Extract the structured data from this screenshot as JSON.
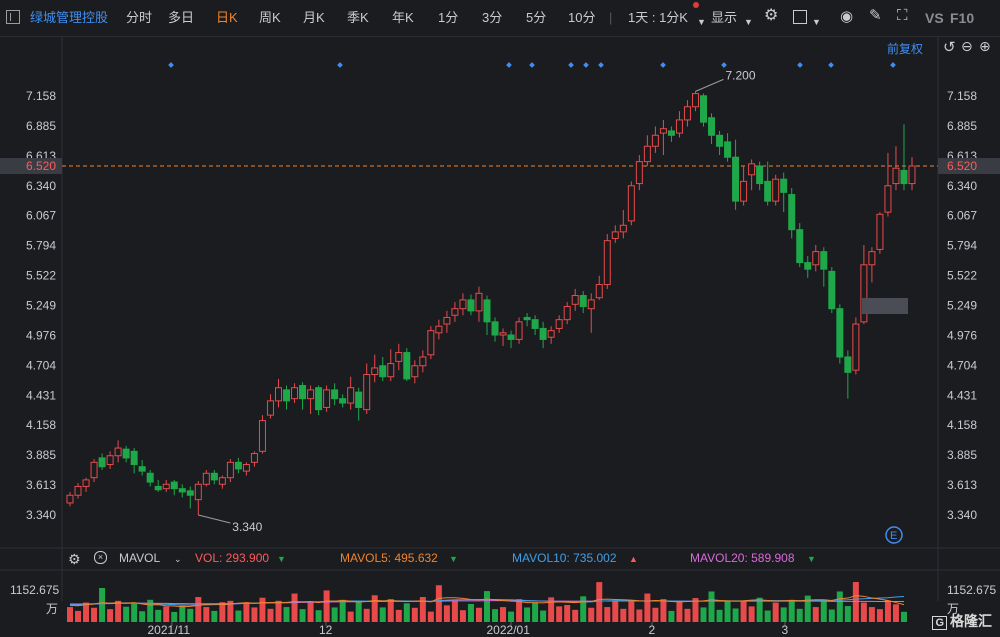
{
  "toolbar": {
    "stock_name": "绿城管理控股",
    "tabs": [
      "分时",
      "多日",
      "日K",
      "周K",
      "月K",
      "季K",
      "年K",
      "1分",
      "3分",
      "5分",
      "10分"
    ],
    "active_tab": "日K",
    "period_select": "1天 : 1分K",
    "display_label": "显示",
    "vs_label": "VS",
    "f10_label": "F10"
  },
  "chart": {
    "adjust_label": "前复权",
    "y_ticks": [
      "7.158",
      "6.885",
      "6.613",
      "6.340",
      "6.067",
      "5.794",
      "5.522",
      "5.249",
      "4.976",
      "4.704",
      "4.431",
      "4.158",
      "3.885",
      "3.613",
      "3.340"
    ],
    "current_price": "6.520",
    "high_label": "7.200",
    "low_label": "3.340",
    "x_labels": [
      "2021/11",
      "12",
      "2022/01",
      "2",
      "3"
    ],
    "event_marker_label": "E"
  },
  "indicator": {
    "name": "MAVOL",
    "vol": "VOL: 293.900",
    "mavol5": "MAVOL5: 495.632",
    "mavol10": "MAVOL10: 735.002",
    "mavol20": "MAVOL20: 589.908",
    "vol_max": "1152.675",
    "vol_unit": "万",
    "vol_color": "#ff5a5a",
    "mavol5_color": "#f0842c",
    "mavol10_color": "#3fa0e8",
    "mavol20_color": "#d86bd8"
  },
  "colors": {
    "up": "#e84a4a",
    "down": "#1fa84a",
    "accent": "#f0842c"
  },
  "chart_data": {
    "type": "candlestick",
    "title": "",
    "ylim": [
      3.3,
      7.3
    ],
    "candles": [
      [
        3.45,
        3.52,
        3.42,
        3.55
      ],
      [
        3.52,
        3.6,
        3.49,
        3.63
      ],
      [
        3.6,
        3.66,
        3.55,
        3.68
      ],
      [
        3.68,
        3.82,
        3.64,
        3.85
      ],
      [
        3.86,
        3.78,
        3.75,
        3.9
      ],
      [
        3.8,
        3.88,
        3.76,
        3.92
      ],
      [
        3.88,
        3.95,
        3.82,
        4.02
      ],
      [
        3.94,
        3.86,
        3.82,
        3.97
      ],
      [
        3.92,
        3.8,
        3.72,
        3.95
      ],
      [
        3.78,
        3.74,
        3.7,
        3.84
      ],
      [
        3.72,
        3.64,
        3.6,
        3.75
      ],
      [
        3.6,
        3.57,
        3.55,
        3.66
      ],
      [
        3.58,
        3.62,
        3.55,
        3.66
      ],
      [
        3.64,
        3.58,
        3.52,
        3.66
      ],
      [
        3.58,
        3.55,
        3.5,
        3.62
      ],
      [
        3.56,
        3.52,
        3.4,
        3.6
      ],
      [
        3.48,
        3.62,
        3.34,
        3.65
      ],
      [
        3.62,
        3.72,
        3.6,
        3.75
      ],
      [
        3.72,
        3.66,
        3.62,
        3.75
      ],
      [
        3.62,
        3.68,
        3.58,
        3.7
      ],
      [
        3.68,
        3.82,
        3.64,
        3.85
      ],
      [
        3.82,
        3.76,
        3.72,
        3.86
      ],
      [
        3.74,
        3.8,
        3.7,
        3.82
      ],
      [
        3.82,
        3.9,
        3.78,
        3.92
      ],
      [
        3.92,
        4.2,
        3.9,
        4.25
      ],
      [
        4.25,
        4.38,
        4.22,
        4.44
      ],
      [
        4.38,
        4.5,
        4.32,
        4.58
      ],
      [
        4.48,
        4.38,
        4.3,
        4.52
      ],
      [
        4.4,
        4.5,
        4.36,
        4.54
      ],
      [
        4.52,
        4.4,
        4.3,
        4.55
      ],
      [
        4.4,
        4.48,
        4.26,
        4.52
      ],
      [
        4.5,
        4.3,
        4.25,
        4.52
      ],
      [
        4.32,
        4.48,
        4.28,
        4.52
      ],
      [
        4.48,
        4.4,
        4.34,
        4.54
      ],
      [
        4.4,
        4.36,
        4.32,
        4.44
      ],
      [
        4.36,
        4.5,
        4.3,
        4.6
      ],
      [
        4.46,
        4.32,
        4.2,
        4.5
      ],
      [
        4.3,
        4.62,
        4.26,
        4.72
      ],
      [
        4.62,
        4.68,
        4.55,
        4.8
      ],
      [
        4.7,
        4.6,
        4.56,
        4.78
      ],
      [
        4.6,
        4.72,
        4.56,
        4.85
      ],
      [
        4.74,
        4.82,
        4.66,
        4.9
      ],
      [
        4.82,
        4.58,
        4.56,
        4.86
      ],
      [
        4.6,
        4.7,
        4.54,
        4.75
      ],
      [
        4.7,
        4.78,
        4.64,
        4.84
      ],
      [
        4.8,
        5.02,
        4.76,
        5.06
      ],
      [
        5.0,
        5.06,
        4.94,
        5.12
      ],
      [
        5.08,
        5.14,
        5.0,
        5.2
      ],
      [
        5.16,
        5.22,
        5.1,
        5.28
      ],
      [
        5.22,
        5.3,
        5.16,
        5.36
      ],
      [
        5.3,
        5.2,
        5.16,
        5.35
      ],
      [
        5.2,
        5.36,
        5.1,
        5.42
      ],
      [
        5.3,
        5.1,
        4.98,
        5.34
      ],
      [
        5.1,
        4.98,
        4.92,
        5.14
      ],
      [
        4.98,
        5.0,
        4.88,
        5.04
      ],
      [
        4.98,
        4.94,
        4.86,
        5.02
      ],
      [
        4.94,
        5.1,
        4.9,
        5.14
      ],
      [
        5.14,
        5.12,
        5.06,
        5.18
      ],
      [
        5.12,
        5.04,
        4.98,
        5.16
      ],
      [
        5.04,
        4.94,
        4.86,
        5.1
      ],
      [
        4.96,
        5.02,
        4.9,
        5.06
      ],
      [
        5.04,
        5.12,
        5.0,
        5.16
      ],
      [
        5.12,
        5.24,
        5.08,
        5.28
      ],
      [
        5.26,
        5.34,
        5.2,
        5.4
      ],
      [
        5.34,
        5.24,
        5.18,
        5.38
      ],
      [
        5.22,
        5.3,
        5.0,
        5.36
      ],
      [
        5.32,
        5.44,
        5.3,
        5.52
      ],
      [
        5.44,
        5.84,
        5.4,
        5.9
      ],
      [
        5.86,
        5.92,
        5.82,
        5.98
      ],
      [
        5.92,
        5.98,
        5.86,
        6.12
      ],
      [
        6.02,
        6.34,
        5.98,
        6.38
      ],
      [
        6.36,
        6.56,
        6.3,
        6.62
      ],
      [
        6.56,
        6.7,
        6.52,
        6.8
      ],
      [
        6.7,
        6.8,
        6.64,
        6.88
      ],
      [
        6.82,
        6.86,
        6.62,
        6.94
      ],
      [
        6.84,
        6.8,
        6.74,
        6.88
      ],
      [
        6.82,
        6.94,
        6.78,
        7.02
      ],
      [
        6.94,
        7.06,
        6.88,
        7.12
      ],
      [
        7.06,
        7.18,
        7.02,
        7.2
      ],
      [
        7.16,
        6.92,
        6.88,
        7.18
      ],
      [
        6.96,
        6.8,
        6.72,
        7.0
      ],
      [
        6.8,
        6.7,
        6.62,
        6.84
      ],
      [
        6.74,
        6.6,
        6.56,
        6.82
      ],
      [
        6.6,
        6.2,
        6.12,
        6.76
      ],
      [
        6.2,
        6.38,
        6.16,
        6.52
      ],
      [
        6.44,
        6.54,
        6.3,
        6.58
      ],
      [
        6.52,
        6.36,
        6.3,
        6.56
      ],
      [
        6.38,
        6.2,
        6.16,
        6.56
      ],
      [
        6.2,
        6.4,
        6.16,
        6.44
      ],
      [
        6.4,
        6.28,
        6.1,
        6.46
      ],
      [
        6.26,
        5.94,
        5.86,
        6.32
      ],
      [
        5.94,
        5.64,
        5.6,
        6.0
      ],
      [
        5.64,
        5.58,
        5.5,
        5.7
      ],
      [
        5.62,
        5.74,
        5.56,
        5.8
      ],
      [
        5.74,
        5.58,
        5.42,
        5.78
      ],
      [
        5.56,
        5.22,
        5.18,
        5.6
      ],
      [
        5.22,
        4.78,
        4.72,
        5.26
      ],
      [
        4.78,
        4.64,
        4.4,
        4.84
      ],
      [
        4.66,
        5.08,
        4.62,
        5.14
      ],
      [
        5.1,
        5.62,
        5.08,
        5.8
      ],
      [
        5.62,
        5.74,
        5.46,
        5.78
      ],
      [
        5.76,
        6.08,
        5.72,
        6.1
      ],
      [
        6.1,
        6.34,
        6.06,
        6.64
      ],
      [
        6.36,
        6.5,
        6.3,
        6.7
      ],
      [
        6.48,
        6.36,
        6.3,
        6.9
      ],
      [
        6.36,
        6.52,
        6.3,
        6.6
      ]
    ],
    "volume": [
      430,
      320,
      560,
      410,
      980,
      370,
      610,
      440,
      520,
      310,
      640,
      350,
      450,
      290,
      470,
      380,
      720,
      430,
      320,
      570,
      610,
      330,
      560,
      420,
      700,
      380,
      610,
      430,
      820,
      370,
      560,
      340,
      910,
      420,
      640,
      300,
      590,
      380,
      770,
      420,
      660,
      350,
      540,
      410,
      720,
      300,
      1060,
      480,
      630,
      340,
      520,
      410,
      890,
      370,
      430,
      300,
      660,
      420,
      560,
      330,
      710,
      450,
      490,
      350,
      740,
      410,
      1150,
      430,
      600,
      380,
      590,
      360,
      820,
      410,
      660,
      320,
      580,
      380,
      690,
      420,
      880,
      350,
      600,
      390,
      610,
      450,
      700,
      330,
      560,
      420,
      640,
      380,
      760,
      430,
      590,
      360,
      880,
      460,
      1152,
      560,
      430,
      370,
      620,
      510,
      293
    ],
    "mavol5": [
      480,
      470,
      500,
      520,
      560,
      540,
      560,
      540,
      560,
      520,
      490,
      500,
      470,
      460,
      440,
      450,
      480,
      510,
      520,
      500,
      520,
      540,
      560,
      540,
      560,
      560,
      570,
      560,
      590,
      580,
      590,
      560,
      610,
      600,
      620,
      600,
      580,
      590,
      620,
      610,
      620,
      600,
      590,
      600,
      610,
      580,
      680,
      700,
      700,
      680,
      650,
      640,
      660,
      640,
      620,
      600,
      590,
      560,
      560,
      550,
      570,
      580,
      570,
      560,
      580,
      590,
      650,
      660,
      650,
      640,
      630,
      610,
      600,
      620,
      610,
      590,
      580,
      590,
      600,
      610,
      640,
      620,
      610,
      600,
      610,
      630,
      640,
      620,
      600,
      610,
      620,
      610,
      630,
      640,
      640,
      620,
      670,
      690,
      760,
      740,
      690,
      660,
      620,
      560,
      500
    ],
    "mavol10": [
      500,
      495,
      505,
      515,
      530,
      540,
      545,
      550,
      545,
      540,
      530,
      520,
      510,
      500,
      490,
      485,
      490,
      495,
      500,
      505,
      515,
      525,
      535,
      540,
      550,
      555,
      560,
      565,
      575,
      580,
      585,
      585,
      595,
      600,
      605,
      605,
      605,
      600,
      600,
      605,
      610,
      610,
      605,
      600,
      600,
      595,
      615,
      630,
      640,
      640,
      645,
      645,
      650,
      650,
      645,
      640,
      630,
      620,
      610,
      600,
      595,
      590,
      585,
      580,
      580,
      580,
      600,
      610,
      615,
      615,
      615,
      610,
      610,
      610,
      610,
      605,
      600,
      600,
      600,
      600,
      610,
      610,
      610,
      610,
      610,
      615,
      615,
      615,
      615,
      615,
      615,
      615,
      615,
      620,
      620,
      620,
      630,
      640,
      660,
      670,
      680,
      690,
      700,
      720,
      735
    ],
    "mavol20": [
      520,
      520,
      520,
      525,
      530,
      530,
      535,
      540,
      540,
      540,
      540,
      535,
      535,
      530,
      530,
      525,
      525,
      525,
      525,
      530,
      530,
      535,
      540,
      540,
      545,
      550,
      550,
      555,
      560,
      565,
      570,
      570,
      575,
      580,
      585,
      585,
      585,
      590,
      590,
      590,
      595,
      595,
      595,
      595,
      595,
      595,
      600,
      605,
      610,
      610,
      610,
      610,
      615,
      615,
      615,
      615,
      615,
      610,
      610,
      605,
      600,
      600,
      600,
      600,
      600,
      600,
      605,
      605,
      605,
      605,
      605,
      605,
      605,
      605,
      605,
      600,
      600,
      600,
      600,
      600,
      600,
      600,
      600,
      600,
      600,
      600,
      600,
      600,
      600,
      600,
      600,
      600,
      600,
      600,
      600,
      595,
      595,
      595,
      595,
      595,
      595,
      592,
      590,
      590,
      590
    ]
  }
}
